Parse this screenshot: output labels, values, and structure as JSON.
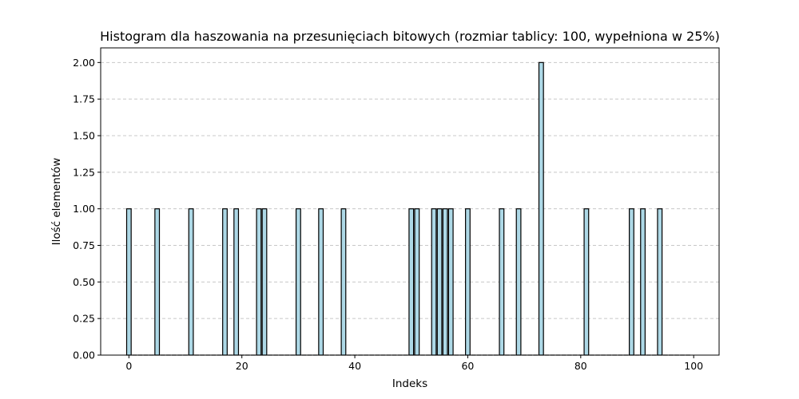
{
  "chart_data": {
    "type": "bar",
    "title": "Histogram dla haszowania na przesunięciach bitowych (rozmiar tablicy: 100, wypełniona w 25%)",
    "xlabel": "Indeks",
    "ylabel": "Ilość elementów",
    "xlim": [
      -5,
      104.5
    ],
    "ylim": [
      0,
      2.1
    ],
    "xticks": [
      0,
      20,
      40,
      60,
      80,
      100
    ],
    "xtick_labels": [
      "0",
      "20",
      "40",
      "60",
      "80",
      "100"
    ],
    "yticks": [
      0,
      0.25,
      0.5,
      0.75,
      1.0,
      1.25,
      1.5,
      1.75,
      2.0
    ],
    "ytick_labels": [
      "0.00",
      "0.25",
      "0.50",
      "0.75",
      "1.00",
      "1.25",
      "1.50",
      "1.75",
      "2.00"
    ],
    "grid": "horizontal dashed",
    "bar_color": "#add8e6",
    "edge_color": "#000000",
    "grid_color": "#c8c8c8",
    "x": [
      0,
      5,
      11,
      17,
      19,
      23,
      24,
      30,
      34,
      38,
      50,
      51,
      54,
      55,
      56,
      57,
      60,
      66,
      69,
      73,
      81,
      89,
      91,
      94
    ],
    "values": [
      1,
      1,
      1,
      1,
      1,
      1,
      1,
      1,
      1,
      1,
      1,
      1,
      1,
      1,
      1,
      1,
      1,
      1,
      1,
      2,
      1,
      1,
      1,
      1
    ],
    "total_bins": 100
  }
}
